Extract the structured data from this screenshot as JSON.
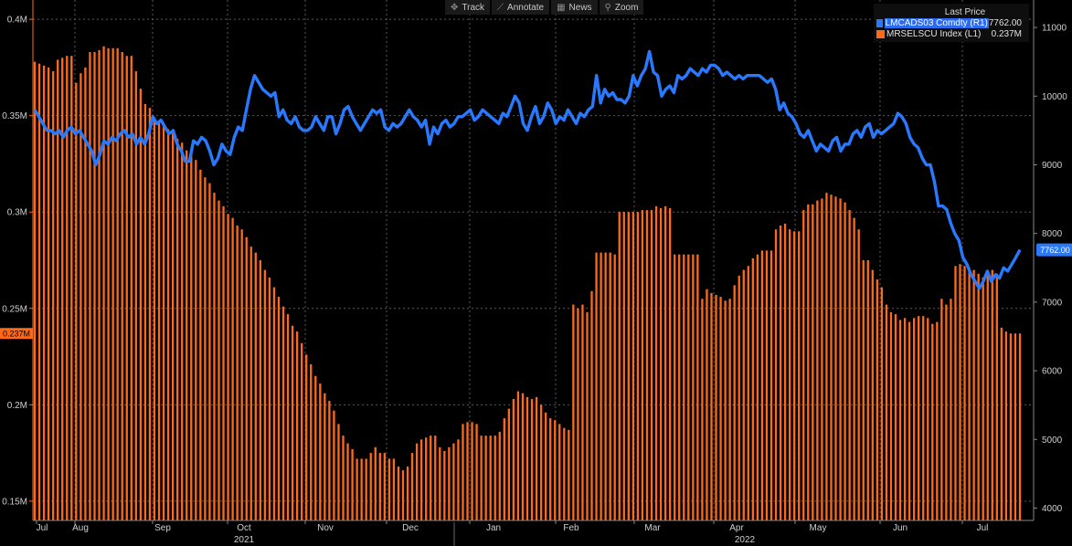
{
  "toolbar": {
    "track": "Track",
    "annotate": "Annotate",
    "news": "News",
    "zoom": "Zoom"
  },
  "legend": {
    "title": "Last Price",
    "series": [
      {
        "label": "LMCADS03 Comdty  (R1)",
        "value": "7762.00",
        "color": "#2979ff"
      },
      {
        "label": "MRSELSCU Index  (L1)",
        "value": "0.237M",
        "color": "#ff6a1a"
      }
    ]
  },
  "chart_data": {
    "type": "bar+line",
    "grid": true,
    "x_ticks": [
      "Jul",
      "Aug",
      "Sep",
      "Oct",
      "Nov",
      "Dec",
      "Jan",
      "Feb",
      "Mar",
      "Apr",
      "May",
      "Jun",
      "Jul"
    ],
    "year_labels": [
      "2021",
      "2022"
    ],
    "left_axis": {
      "ticks": [
        "0.4M",
        "0.35M",
        "0.3M",
        "0.25M",
        "0.2M",
        "0.15M"
      ],
      "values": [
        0.4,
        0.35,
        0.3,
        0.25,
        0.2,
        0.15
      ],
      "range": [
        0.14,
        0.41
      ],
      "last_value_label": "0.237M"
    },
    "right_axis": {
      "ticks": [
        "11000",
        "10000",
        "9000",
        "8000",
        "7000",
        "6000",
        "5000",
        "4000"
      ],
      "values": [
        11000,
        10000,
        9000,
        8000,
        7000,
        6000,
        5000,
        4000
      ],
      "range": [
        3820,
        11400
      ],
      "last_value_label": "7762.00"
    },
    "series": [
      {
        "name": "MRSELSCU Index (L1)",
        "type": "bar",
        "axis": "left",
        "color": "#ff6a1a",
        "values": [
          0.378,
          0.377,
          0.376,
          0.375,
          0.373,
          0.379,
          0.38,
          0.381,
          0.381,
          0.367,
          0.372,
          0.375,
          0.383,
          0.383,
          0.384,
          0.386,
          0.385,
          0.385,
          0.385,
          0.383,
          0.381,
          0.381,
          0.373,
          0.364,
          0.356,
          0.354,
          0.349,
          0.347,
          0.345,
          0.343,
          0.341,
          0.338,
          0.336,
          0.332,
          0.33,
          0.327,
          0.322,
          0.318,
          0.315,
          0.31,
          0.306,
          0.303,
          0.299,
          0.297,
          0.293,
          0.291,
          0.287,
          0.282,
          0.279,
          0.275,
          0.27,
          0.266,
          0.261,
          0.256,
          0.251,
          0.247,
          0.241,
          0.238,
          0.232,
          0.226,
          0.221,
          0.215,
          0.211,
          0.206,
          0.202,
          0.197,
          0.19,
          0.184,
          0.18,
          0.177,
          0.172,
          0.172,
          0.172,
          0.175,
          0.178,
          0.175,
          0.175,
          0.172,
          0.172,
          0.168,
          0.166,
          0.168,
          0.175,
          0.18,
          0.182,
          0.183,
          0.184,
          0.184,
          0.178,
          0.176,
          0.178,
          0.18,
          0.182,
          0.19,
          0.191,
          0.191,
          0.19,
          0.184,
          0.184,
          0.184,
          0.184,
          0.186,
          0.193,
          0.198,
          0.203,
          0.207,
          0.206,
          0.204,
          0.203,
          0.204,
          0.2,
          0.196,
          0.193,
          0.192,
          0.19,
          0.188,
          0.187,
          0.252,
          0.25,
          0.252,
          0.248,
          0.259,
          0.279,
          0.279,
          0.279,
          0.279,
          0.278,
          0.3,
          0.3,
          0.3,
          0.3,
          0.3,
          0.301,
          0.301,
          0.301,
          0.303,
          0.302,
          0.303,
          0.302,
          0.278,
          0.278,
          0.278,
          0.278,
          0.278,
          0.278,
          0.255,
          0.26,
          0.258,
          0.257,
          0.256,
          0.254,
          0.255,
          0.262,
          0.267,
          0.27,
          0.272,
          0.276,
          0.278,
          0.28,
          0.28,
          0.28,
          0.291,
          0.293,
          0.294,
          0.291,
          0.29,
          0.29,
          0.301,
          0.304,
          0.304,
          0.306,
          0.307,
          0.31,
          0.309,
          0.308,
          0.307,
          0.305,
          0.301,
          0.297,
          0.291,
          0.275,
          0.275,
          0.27,
          0.265,
          0.261,
          0.252,
          0.248,
          0.247,
          0.244,
          0.245,
          0.243,
          0.245,
          0.246,
          0.246,
          0.245,
          0.242,
          0.243,
          0.255,
          0.252,
          0.255,
          0.272,
          0.273,
          0.272,
          0.271,
          0.27,
          0.268,
          0.266,
          0.269,
          0.27,
          0.268,
          0.24,
          0.238,
          0.237,
          0.237,
          0.237
        ]
      },
      {
        "name": "LMCADS03 Comdty (R1)",
        "type": "line",
        "axis": "right",
        "color": "#2979ff",
        "values": [
          9800,
          9700,
          9600,
          9500,
          9500,
          9450,
          9500,
          9400,
          9500,
          9550,
          9450,
          9500,
          9400,
          9300,
          9200,
          9000,
          9150,
          9350,
          9300,
          9400,
          9350,
          9450,
          9500,
          9400,
          9450,
          9300,
          9400,
          9300,
          9450,
          9700,
          9600,
          9650,
          9550,
          9450,
          9500,
          9300,
          9200,
          9050,
          9050,
          9350,
          9300,
          9400,
          9350,
          9200,
          9000,
          9100,
          9300,
          9200,
          9150,
          9400,
          9550,
          9500,
          9800,
          10100,
          10300,
          10200,
          10100,
          10050,
          10000,
          10050,
          9700,
          9800,
          9650,
          9600,
          9700,
          9550,
          9500,
          9500,
          9550,
          9700,
          9600,
          9500,
          9700,
          9700,
          9450,
          9600,
          9800,
          9850,
          9700,
          9600,
          9500,
          9600,
          9700,
          9800,
          9750,
          9800,
          9550,
          9500,
          9600,
          9550,
          9600,
          9700,
          9800,
          9700,
          9650,
          9550,
          9650,
          9300,
          9550,
          9450,
          9600,
          9650,
          9550,
          9600,
          9700,
          9700,
          9750,
          9800,
          9650,
          9700,
          9800,
          9750,
          9700,
          9650,
          9600,
          9750,
          9700,
          9850,
          10000,
          9900,
          9600,
          9500,
          9700,
          9850,
          9600,
          9700,
          9900,
          9800,
          9600,
          9700,
          9650,
          9800,
          9700,
          9600,
          9750,
          9700,
          9800,
          9850,
          10300,
          9900,
          10100,
          10000,
          10050,
          9950,
          9950,
          9900,
          10000,
          10300,
          10150,
          10300,
          10400,
          10650,
          10350,
          10300,
          10000,
          10100,
          10150,
          10050,
          10300,
          10250,
          10300,
          10400,
          10350,
          10300,
          10400,
          10350,
          10450,
          10450,
          10400,
          10300,
          10350,
          10300,
          10250,
          10300,
          10250,
          10300,
          10300,
          10300,
          10300,
          10250,
          10200,
          10250,
          10100,
          9800,
          9900,
          9750,
          9700,
          9600,
          9450,
          9400,
          9500,
          9350,
          9200,
          9300,
          9250,
          9200,
          9350,
          9400,
          9200,
          9300,
          9300,
          9450,
          9500,
          9400,
          9550,
          9600,
          9400,
          9500,
          9450,
          9500,
          9550,
          9600,
          9750,
          9700,
          9600,
          9400,
          9300,
          9250,
          9100,
          9000,
          9000,
          8750,
          8400,
          8400,
          8350,
          8150,
          8000,
          7900,
          7650,
          7550,
          7400,
          7300,
          7200,
          7300,
          7450,
          7300,
          7400,
          7350,
          7500,
          7450,
          7550,
          7650,
          7762
        ]
      }
    ]
  }
}
